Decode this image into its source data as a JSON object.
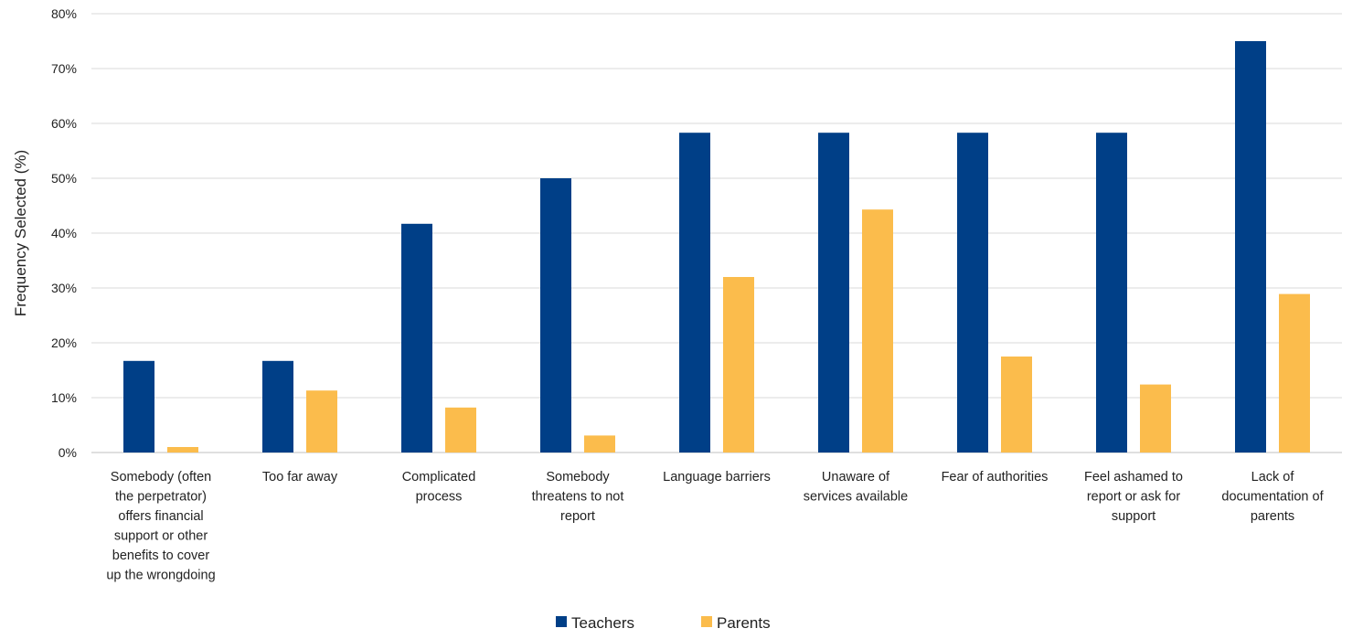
{
  "colors": {
    "teachers": "#003f87",
    "parents": "#fbbc4c",
    "grid": "#d9d9d9",
    "text": "#222222"
  },
  "chart_data": {
    "type": "bar",
    "ylabel": "Frequency Selected (%)",
    "ylim": [
      0,
      80
    ],
    "yticks": [
      "0%",
      "10%",
      "20%",
      "30%",
      "40%",
      "50%",
      "60%",
      "70%",
      "80%"
    ],
    "grid": true,
    "legend_position": "bottom-center",
    "categories": [
      [
        "Somebody (often",
        "the perpetrator)",
        "offers financial",
        "support or other",
        "benefits to cover",
        "up the wrongdoing"
      ],
      [
        "Too far away"
      ],
      [
        "Complicated",
        "process"
      ],
      [
        "Somebody",
        "threatens to not",
        "report"
      ],
      [
        "Language barriers"
      ],
      [
        "Unaware of",
        "services available"
      ],
      [
        "Fear of authorities"
      ],
      [
        "Feel ashamed to",
        "report or ask for",
        "support"
      ],
      [
        "Lack of",
        "documentation of",
        "parents"
      ]
    ],
    "series": [
      {
        "name": "Teachers",
        "values": [
          16.7,
          16.7,
          41.7,
          50,
          58.3,
          58.3,
          58.3,
          58.3,
          75
        ]
      },
      {
        "name": "Parents",
        "values": [
          1,
          11.3,
          8.2,
          3.1,
          32,
          44.3,
          17.5,
          12.4,
          28.9
        ]
      }
    ]
  }
}
